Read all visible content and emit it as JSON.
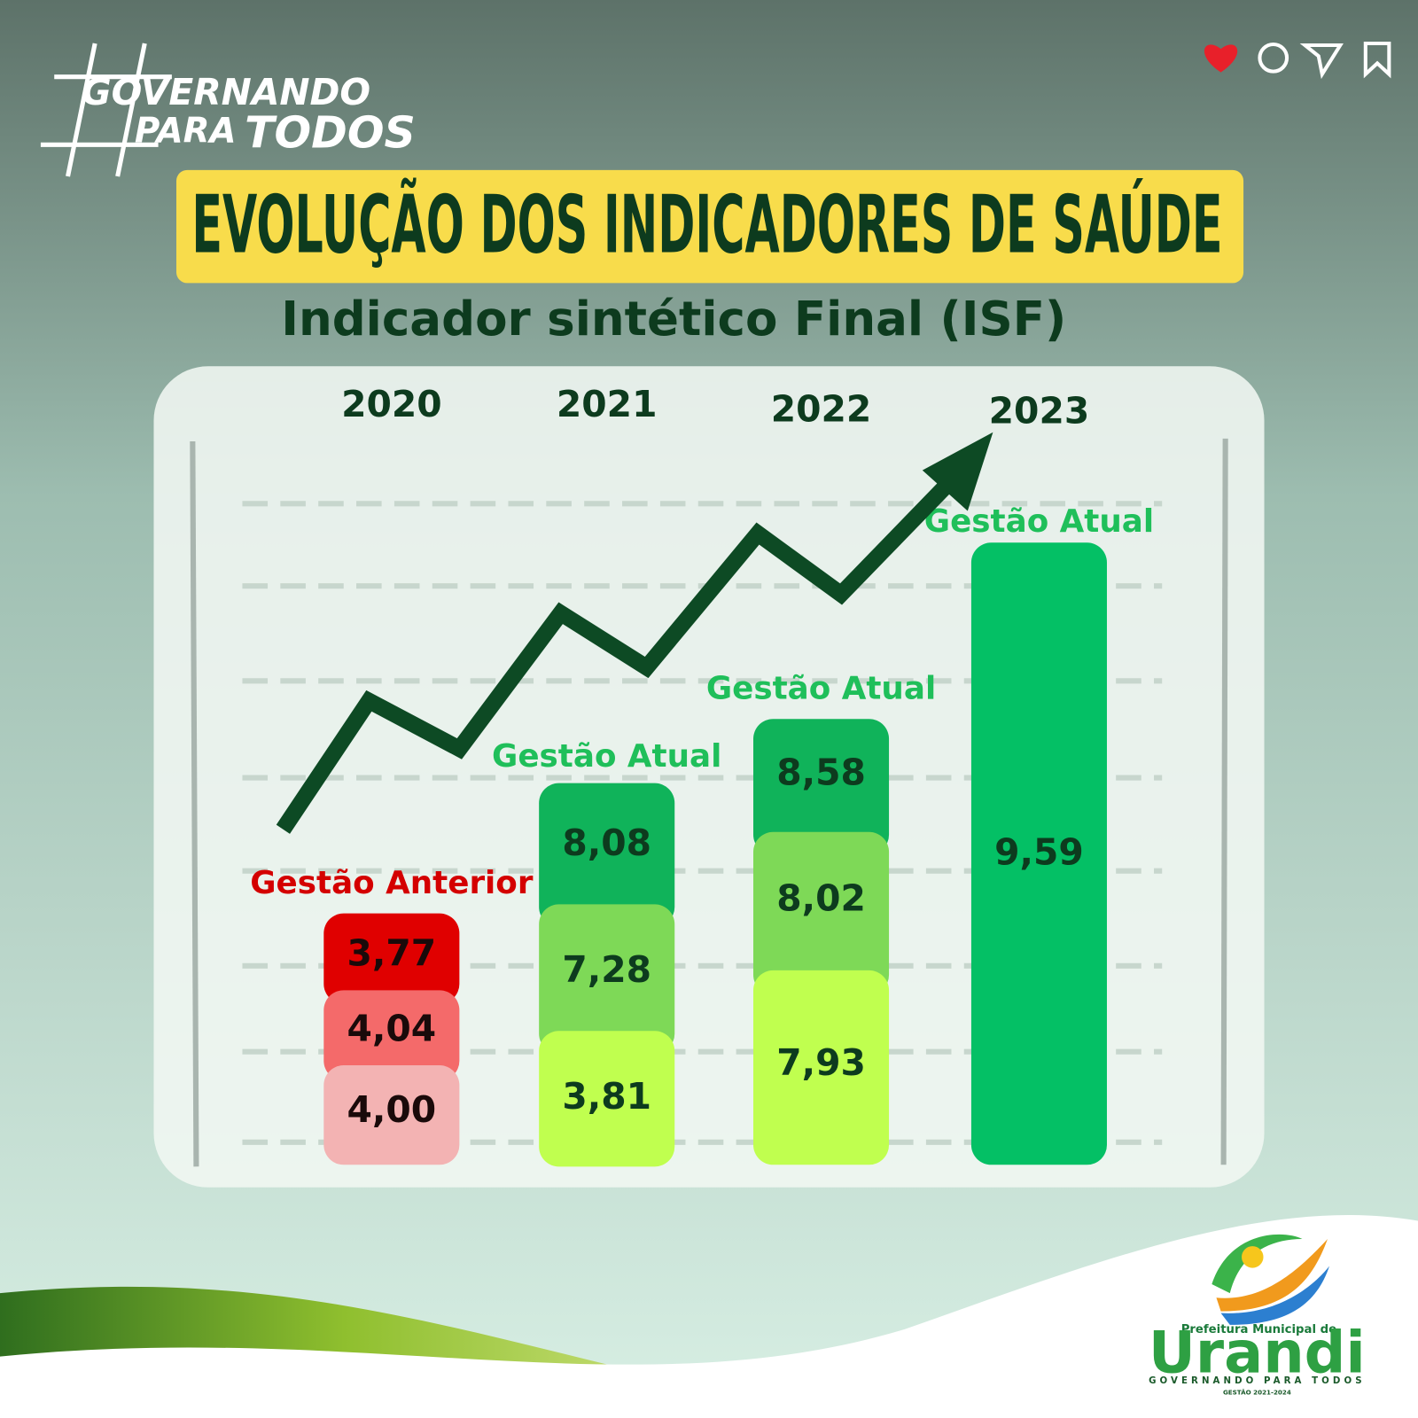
{
  "header": {
    "brand_line1": "GOVERNANDO",
    "brand_line2a": "PARA",
    "brand_line2b": "TODOS",
    "title": "EVOLUÇÃO DOS INDICADORES DE SAÚDE",
    "subtitle": "Indicador sintético Final (ISF)"
  },
  "columns": [
    {
      "year": "2020",
      "label": "Gestão Anterior",
      "segments": [
        "3,77",
        "4,04",
        "4,00"
      ]
    },
    {
      "year": "2021",
      "label": "Gestão Atual",
      "segments": [
        "8,08",
        "7,28",
        "3,81"
      ]
    },
    {
      "year": "2022",
      "label": "Gestão Atual",
      "segments": [
        "8,58",
        "8,02",
        "7,93"
      ]
    },
    {
      "year": "2023",
      "label": "Gestão Atual",
      "segments": [
        "9,59"
      ]
    }
  ],
  "footer": {
    "logo_top": "Prefeitura Municipal de",
    "logo_name": "Urandi",
    "logo_tagline": "GOVERNANDO PARA TODOS",
    "logo_sub": "GESTÃO 2021-2024"
  }
}
